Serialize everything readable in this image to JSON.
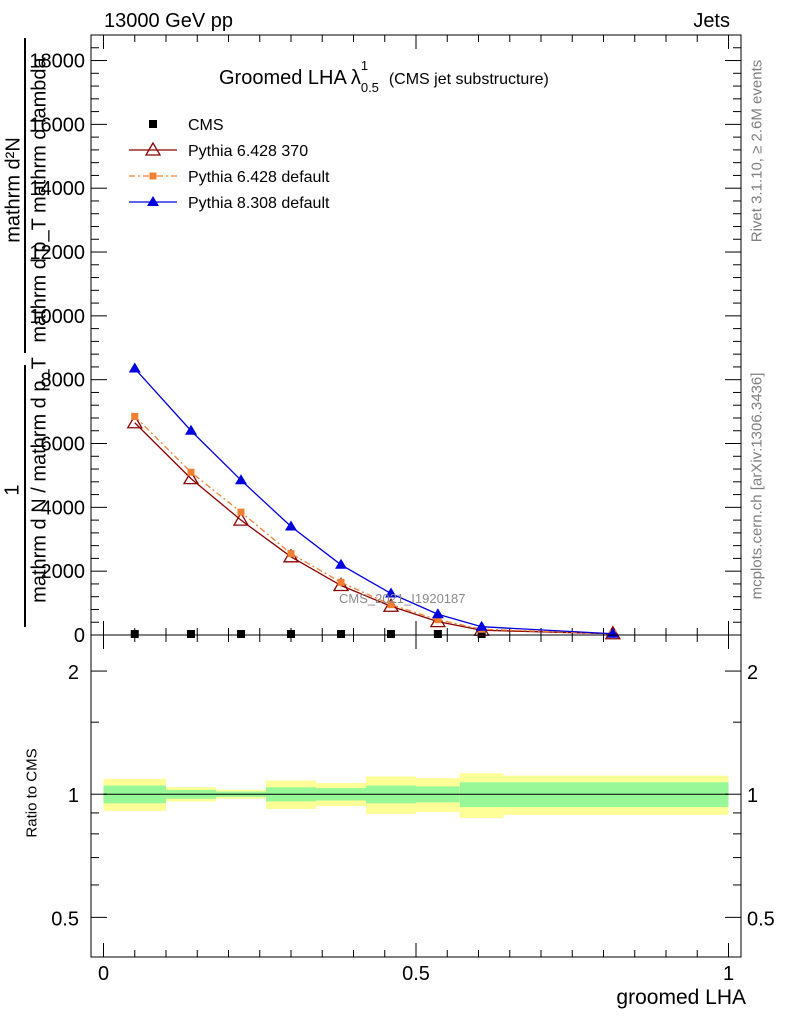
{
  "header": {
    "energy_label": "13000 GeV pp",
    "category_label": "Jets"
  },
  "plot_title": {
    "main": "Groomed LHA",
    "symbol": "λ",
    "superscript": "1",
    "subscript": "0.5",
    "note": "(CMS jet substructure)"
  },
  "side_labels": {
    "rivet": "Rivet 3.1.10, ≥ 2.6M events",
    "mcplots": "mcplots.cern.ch [arXiv:1306.3436]"
  },
  "watermark": "CMS_2021_I1920187",
  "ylabel_lines": {
    "line1": "mathrm d²N",
    "line2": "mathrm d p_T mathrm d lambda",
    "one": "1",
    "line3": "mathrm d N / mathrm d p_T"
  },
  "colors": {
    "cms": "#000000",
    "pythia6_370": "#8b0000",
    "pythia6_default": "#f08030",
    "pythia8": "#0000dd",
    "band_inner": "#98f898",
    "band_outer": "#ffff98"
  },
  "chart_data": [
    {
      "type": "line",
      "panel": "main",
      "xlim": [
        -0.02,
        1.02
      ],
      "ylim": [
        0,
        18800
      ],
      "y_ticks": [
        0,
        2000,
        4000,
        6000,
        8000,
        10000,
        12000,
        14000,
        16000,
        18000
      ],
      "y_tick_labels": [
        "0",
        "2000",
        "4000",
        "6000",
        "8000",
        "10000",
        "12000",
        "14000",
        "16000",
        "18000"
      ],
      "legend_position": "top-left",
      "series": [
        {
          "name": "CMS",
          "x": [
            0.05,
            0.14,
            0.22,
            0.3,
            0.38,
            0.46,
            0.535,
            0.605,
            0.815
          ],
          "y": [
            0,
            0,
            0,
            0,
            0,
            0,
            0,
            0,
            0
          ]
        },
        {
          "name": "Pythia 6.428 370",
          "x": [
            0.05,
            0.14,
            0.22,
            0.3,
            0.38,
            0.46,
            0.535,
            0.605,
            0.815
          ],
          "y": [
            6650,
            4900,
            3600,
            2450,
            1550,
            900,
            420,
            150,
            40
          ]
        },
        {
          "name": "Pythia 6.428 default",
          "x": [
            0.05,
            0.14,
            0.22,
            0.3,
            0.38,
            0.46,
            0.535,
            0.605,
            0.815
          ],
          "y": [
            6850,
            5100,
            3850,
            2550,
            1650,
            950,
            480,
            180,
            40
          ]
        },
        {
          "name": "Pythia 8.308 default",
          "x": [
            0.05,
            0.14,
            0.22,
            0.3,
            0.38,
            0.46,
            0.535,
            0.605,
            0.815
          ],
          "y": [
            8350,
            6400,
            4850,
            3400,
            2200,
            1300,
            650,
            260,
            40
          ]
        }
      ]
    },
    {
      "type": "area",
      "panel": "ratio",
      "ylabel": "Ratio to CMS",
      "xlabel": "groomed LHA",
      "xlim": [
        -0.02,
        1.02
      ],
      "ylim": [
        0.4,
        2.45
      ],
      "log_y": true,
      "x_ticks": [
        0,
        0.5,
        1
      ],
      "x_tick_labels": [
        "0",
        "0.5",
        "1"
      ],
      "y_ticks": [
        0.5,
        1,
        2
      ],
      "y_tick_labels": [
        "0.5",
        "1",
        "2"
      ],
      "band_bins": [
        0,
        0.1,
        0.18,
        0.26,
        0.34,
        0.42,
        0.5,
        0.57,
        0.64,
        1.0
      ],
      "band_inner": {
        "low": [
          0.95,
          0.975,
          0.985,
          0.96,
          0.965,
          0.95,
          0.955,
          0.93,
          0.93
        ],
        "high": [
          1.05,
          1.025,
          1.015,
          1.04,
          1.035,
          1.05,
          1.045,
          1.07,
          1.07
        ]
      },
      "band_outer": {
        "low": [
          0.91,
          0.96,
          0.975,
          0.92,
          0.935,
          0.895,
          0.905,
          0.875,
          0.89
        ],
        "high": [
          1.09,
          1.04,
          1.025,
          1.08,
          1.065,
          1.105,
          1.095,
          1.125,
          1.11
        ]
      },
      "reference_line": 1
    }
  ]
}
